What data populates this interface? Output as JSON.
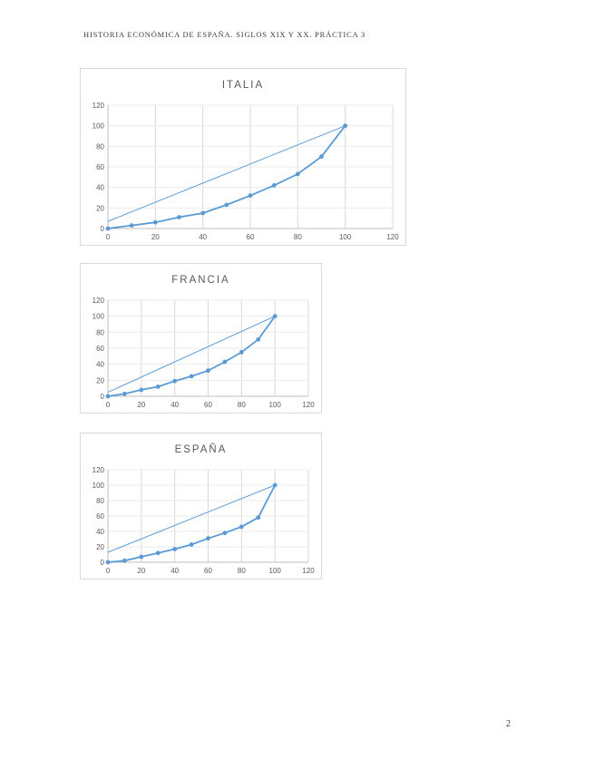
{
  "page": {
    "header": "HISTORIA ECONÓMICA DE ESPAÑA. SIGLOS XIX Y XX. PRÁCTICA 3",
    "page_number": "2"
  },
  "chart_data": [
    {
      "type": "line",
      "title": "ITALIA",
      "x": [
        0,
        10,
        20,
        30,
        40,
        50,
        60,
        70,
        80,
        90,
        100
      ],
      "series": [
        {
          "name": "equality-line",
          "x": [
            0,
            100
          ],
          "values": [
            7,
            100
          ],
          "marker": false
        },
        {
          "name": "cumulative-distribution",
          "values": [
            0,
            3,
            6,
            11,
            15,
            23,
            32,
            42,
            53,
            70,
            100
          ],
          "marker": true
        }
      ],
      "xlim": [
        0,
        120
      ],
      "ylim": [
        0,
        120
      ],
      "xticks": [
        0,
        20,
        40,
        60,
        80,
        100,
        120
      ],
      "yticks": [
        0,
        20,
        40,
        60,
        80,
        100,
        120
      ],
      "grid": "both",
      "legend": "none",
      "accent": "#5b9bd5"
    },
    {
      "type": "line",
      "title": "FRANCIA",
      "x": [
        0,
        10,
        20,
        30,
        40,
        50,
        60,
        70,
        80,
        90,
        100
      ],
      "series": [
        {
          "name": "equality-line",
          "x": [
            0,
            100
          ],
          "values": [
            5,
            100
          ],
          "marker": false
        },
        {
          "name": "cumulative-distribution",
          "values": [
            0,
            3,
            8,
            12,
            19,
            25,
            32,
            43,
            55,
            71,
            100
          ],
          "marker": true
        }
      ],
      "xlim": [
        0,
        120
      ],
      "ylim": [
        0,
        120
      ],
      "xticks": [
        0,
        20,
        40,
        60,
        80,
        100,
        120
      ],
      "yticks": [
        0,
        20,
        40,
        60,
        80,
        100,
        120
      ],
      "grid": "both",
      "legend": "none",
      "accent": "#5b9bd5"
    },
    {
      "type": "line",
      "title": "ESPAÑA",
      "x": [
        0,
        10,
        20,
        30,
        40,
        50,
        60,
        70,
        80,
        90,
        100
      ],
      "series": [
        {
          "name": "equality-line",
          "x": [
            0,
            100
          ],
          "values": [
            13,
            100
          ],
          "marker": false
        },
        {
          "name": "cumulative-distribution",
          "values": [
            0,
            2,
            7,
            12,
            17,
            23,
            31,
            38,
            46,
            58,
            100
          ],
          "marker": true
        }
      ],
      "xlim": [
        0,
        120
      ],
      "ylim": [
        0,
        120
      ],
      "xticks": [
        0,
        20,
        40,
        60,
        80,
        100,
        120
      ],
      "yticks": [
        0,
        20,
        40,
        60,
        80,
        100,
        120
      ],
      "grid": "both",
      "legend": "none",
      "accent": "#5b9bd5"
    }
  ]
}
